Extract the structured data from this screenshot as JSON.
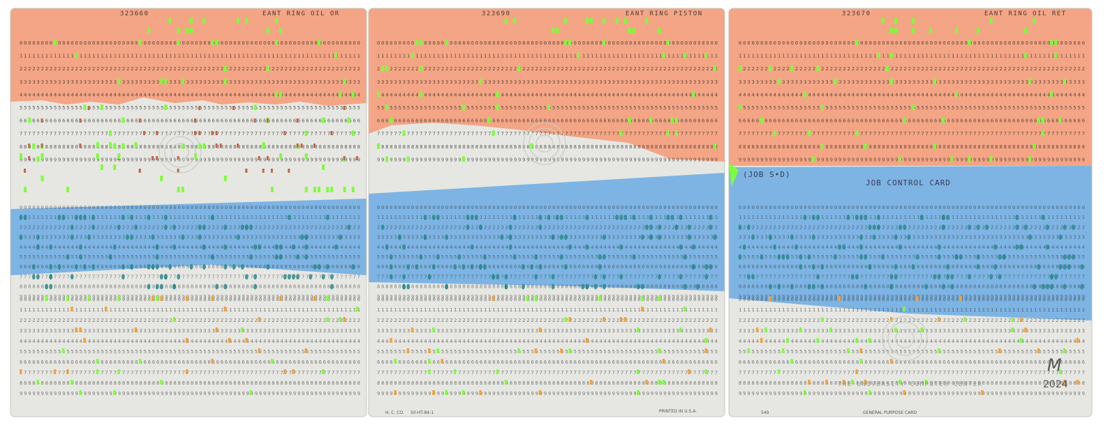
{
  "colors": {
    "background": "#ffffff",
    "salmon": "#f4a585",
    "salmon_edge": "#e98f6c",
    "cream": "#e6e7e2",
    "blue": "#7db4e4",
    "blue_dark": "#5d9bd6",
    "neon_green": "#7dff3a",
    "orange_mark": "#f3a23c",
    "teal_hole": "#2e8a8f",
    "rust_mark": "#c0684a",
    "digit_dark": "#2d2a28"
  },
  "cards": [
    {
      "number": "323660",
      "label": "EANT RING OIL OR"
    },
    {
      "number": "323690",
      "label": "EANT RING PISTON"
    },
    {
      "number": "323670",
      "label": "EANT RING OIL RET"
    }
  ],
  "job_card": {
    "tag": "(JOB S•D)",
    "title": "JOB CONTROL CARD"
  },
  "footer": {
    "maker": "H. C. CO.",
    "code": "50-HT-84-1",
    "printed": "PRINTED IN U.S.A.",
    "center": "THE UNIVERSITY COMPUTER CENTER",
    "small_num": "549",
    "small_purpose": "GENERAL PURPOSE CARD"
  },
  "signature": {
    "initials": "M",
    "year": "2024"
  }
}
